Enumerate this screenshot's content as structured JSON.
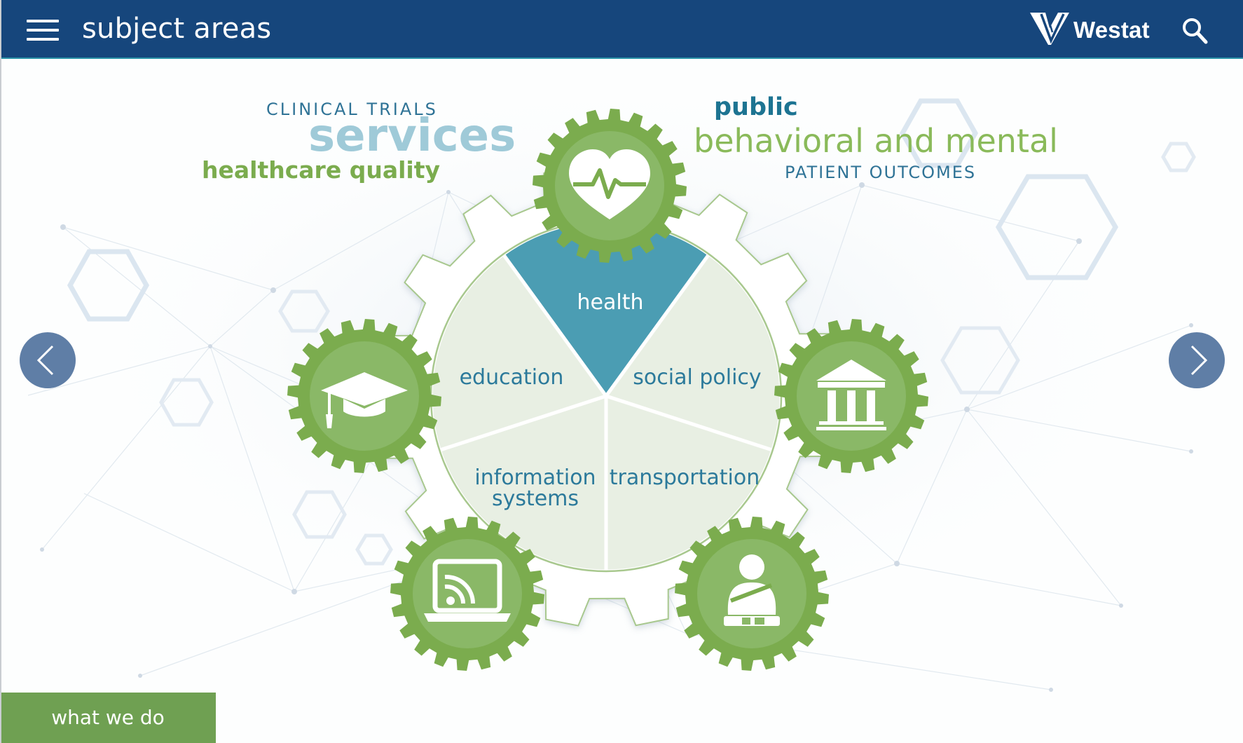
{
  "header": {
    "menu_icon": "hamburger-menu-icon",
    "title": "subject areas",
    "logo_text": "Westat",
    "logo_trademark": "®",
    "search_icon": "search-icon",
    "background": "#16467c"
  },
  "word_cloud": {
    "left": [
      {
        "text": "CLINICAL TRIALS",
        "color": "#2f7396"
      },
      {
        "text": "services",
        "color": "#9fcad8"
      },
      {
        "text": "healthcare quality",
        "color": "#7bac4e"
      }
    ],
    "right": [
      {
        "text": "public",
        "color": "#1d7492"
      },
      {
        "text": "behavioral and mental",
        "color": "#8aba5a"
      },
      {
        "text": "PATIENT OUTCOMES",
        "color": "#2f7396"
      }
    ]
  },
  "wheel": {
    "active": "health",
    "segments": [
      {
        "label": "health",
        "icon": "heart-pulse-icon",
        "active": true
      },
      {
        "label": "social policy",
        "icon": "government-building-icon",
        "active": false
      },
      {
        "label": "transportation",
        "icon": "seatbelt-person-icon",
        "active": false
      },
      {
        "label": "information systems",
        "icon": "laptop-signal-icon",
        "active": false
      },
      {
        "label": "education",
        "icon": "graduation-cap-icon",
        "active": false
      }
    ],
    "colors": {
      "active": "#4b9db3",
      "inactive": "#e8efe3",
      "gear": "#7bac4e"
    }
  },
  "navigation": {
    "prev_icon": "chevron-left-icon",
    "next_icon": "chevron-right-icon"
  },
  "footer_button": {
    "label": "what we do",
    "color": "#6fa052"
  }
}
